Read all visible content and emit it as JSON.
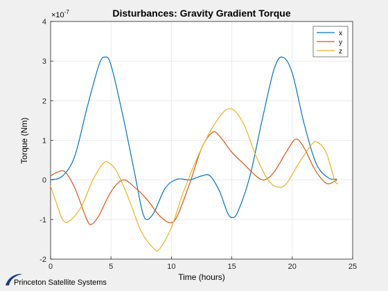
{
  "chart_data": {
    "type": "line",
    "title": "Disturbances: Gravity Gradient Torque",
    "xlabel": "Time (hours)",
    "ylabel": "Torque (Nm)",
    "y_exponent_label": "×10",
    "y_exponent": "-7",
    "xlim": [
      0,
      25
    ],
    "ylim": [
      -2,
      4
    ],
    "xticks": [
      "0",
      "5",
      "10",
      "15",
      "20",
      "25"
    ],
    "yticks": [
      "-2",
      "-1",
      "0",
      "1",
      "2",
      "3",
      "4"
    ],
    "grid": true,
    "legend_position": "top-right",
    "series": [
      {
        "name": "x",
        "color": "#0072BD",
        "points": [
          [
            0,
            0
          ],
          [
            1,
            0.1
          ],
          [
            2,
            0.6
          ],
          [
            3,
            1.8
          ],
          [
            4,
            2.9
          ],
          [
            4.5,
            3.1
          ],
          [
            5,
            2.9
          ],
          [
            6,
            1.6
          ],
          [
            7,
            0.1
          ],
          [
            7.6,
            -0.8
          ],
          [
            8,
            -1.0
          ],
          [
            8.6,
            -0.8
          ],
          [
            9.5,
            -0.2
          ],
          [
            10.5,
            0.02
          ],
          [
            11.5,
            0
          ],
          [
            12.5,
            0.1
          ],
          [
            13.2,
            0.1
          ],
          [
            14,
            -0.3
          ],
          [
            14.6,
            -0.8
          ],
          [
            15,
            -0.95
          ],
          [
            15.5,
            -0.8
          ],
          [
            16.5,
            0.1
          ],
          [
            17.5,
            1.5
          ],
          [
            18.5,
            2.8
          ],
          [
            19.2,
            3.1
          ],
          [
            20,
            2.7
          ],
          [
            21,
            1.4
          ],
          [
            22,
            0.4
          ],
          [
            23,
            0.05
          ],
          [
            23.7,
            0.02
          ]
        ]
      },
      {
        "name": "y",
        "color": "#D95319",
        "points": [
          [
            0,
            0.1
          ],
          [
            0.6,
            0.2
          ],
          [
            1.2,
            0.2
          ],
          [
            2,
            -0.2
          ],
          [
            3,
            -1.0
          ],
          [
            3.4,
            -1.12
          ],
          [
            4,
            -0.9
          ],
          [
            5,
            -0.3
          ],
          [
            6,
            0
          ],
          [
            7,
            -0.2
          ],
          [
            8,
            -0.5
          ],
          [
            9,
            -0.9
          ],
          [
            9.9,
            -1.08
          ],
          [
            10.5,
            -0.9
          ],
          [
            11.5,
            -0.1
          ],
          [
            12.5,
            0.8
          ],
          [
            13.4,
            1.2
          ],
          [
            14,
            1.1
          ],
          [
            15,
            0.7
          ],
          [
            16,
            0.4
          ],
          [
            17,
            0.1
          ],
          [
            17.7,
            0
          ],
          [
            18.5,
            0.2
          ],
          [
            19.5,
            0.7
          ],
          [
            20.3,
            1.03
          ],
          [
            21,
            0.8
          ],
          [
            21.8,
            0.3
          ],
          [
            22.5,
            0
          ],
          [
            23,
            -0.1
          ],
          [
            23.7,
            0
          ]
        ]
      },
      {
        "name": "z",
        "color": "#EDB120",
        "points": [
          [
            0,
            -0.15
          ],
          [
            0.5,
            -0.6
          ],
          [
            1,
            -1.0
          ],
          [
            1.5,
            -1.05
          ],
          [
            2.5,
            -0.7
          ],
          [
            3.5,
            0
          ],
          [
            4.3,
            0.4
          ],
          [
            4.8,
            0.44
          ],
          [
            5.5,
            0.2
          ],
          [
            6.5,
            -0.5
          ],
          [
            7.5,
            -1.3
          ],
          [
            8.5,
            -1.72
          ],
          [
            9,
            -1.75
          ],
          [
            10,
            -1.2
          ],
          [
            11,
            -0.3
          ],
          [
            12.5,
            0.8
          ],
          [
            14,
            1.6
          ],
          [
            15,
            1.79
          ],
          [
            16,
            1.4
          ],
          [
            17,
            0.6
          ],
          [
            18,
            0
          ],
          [
            18.8,
            -0.18
          ],
          [
            19.5,
            -0.1
          ],
          [
            20.5,
            0.4
          ],
          [
            21.5,
            0.85
          ],
          [
            22,
            0.96
          ],
          [
            22.8,
            0.7
          ],
          [
            23.5,
            0
          ],
          [
            23.8,
            -0.1
          ]
        ]
      }
    ]
  },
  "logo": {
    "text": "Princeton Satellite Systems"
  }
}
